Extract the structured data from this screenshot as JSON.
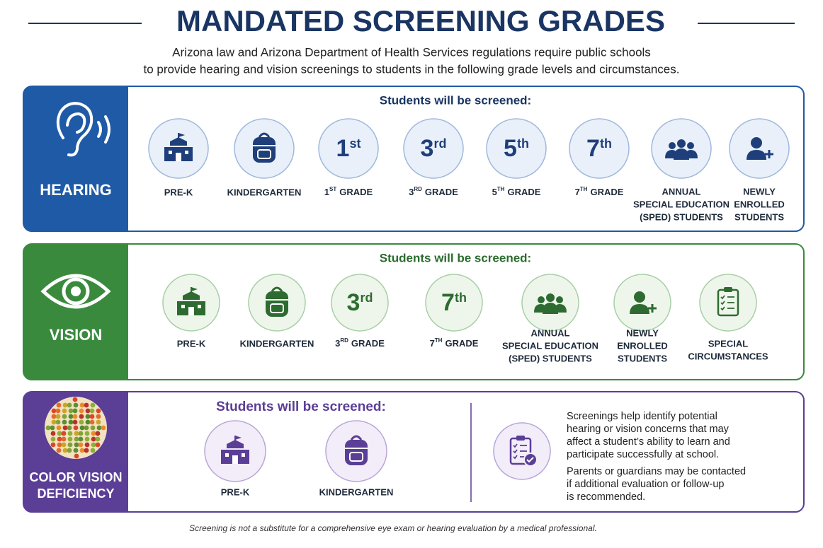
{
  "header": {
    "title": "MANDATED SCREENING GRADES",
    "subtitle_lines": [
      "Arizona law and Arizona Department of Health Services regulations require public schools",
      "to provide hearing and vision screenings to students in the following grade levels and circumstances."
    ]
  },
  "sections": [
    {
      "label_lines": [
        "HEARING"
      ],
      "heading": "Students will be screened:",
      "items": [
        {
          "label_lines": [
            "PRE-K"
          ]
        },
        {
          "label_lines": [
            "KINDERGARTEN"
          ]
        },
        {
          "badge": {
            "num": "1",
            "sup": "st"
          },
          "label": {
            "num": "1",
            "sup": "ST",
            "rest": "GRADE"
          }
        },
        {
          "badge": {
            "num": "3",
            "sup": "rd"
          },
          "label": {
            "num": "3",
            "sup": "RD",
            "rest": "GRADE"
          }
        },
        {
          "badge": {
            "num": "5",
            "sup": "th"
          },
          "label": {
            "num": "5",
            "sup": "TH",
            "rest": "GRADE"
          }
        },
        {
          "badge": {
            "num": "7",
            "sup": "th"
          },
          "label": {
            "num": "7",
            "sup": "TH",
            "rest": "GRADE"
          }
        },
        {
          "label_lines": [
            "ANNUAL",
            "SPECIAL EDUCATION",
            "(SPED) STUDENTS"
          ]
        },
        {
          "label_lines": [
            "NEWLY",
            "ENROLLED",
            "STUDENTS"
          ]
        }
      ]
    },
    {
      "label_lines": [
        "VISION"
      ],
      "heading": "Students will be screened:",
      "items": [
        {
          "label_lines": [
            "PRE-K"
          ]
        },
        {
          "label_lines": [
            "KINDERGARTEN"
          ]
        },
        {
          "badge": {
            "num": "3",
            "sup": "rd"
          },
          "label": {
            "num": "3",
            "sup": "RD",
            "rest": "GRADE"
          }
        },
        {
          "badge": {
            "num": "7",
            "sup": "th"
          },
          "label": {
            "num": "7",
            "sup": "TH",
            "rest": "GRADE"
          }
        },
        {
          "label_lines": [
            "ANNUAL",
            "SPECIAL EDUCATION",
            "(SPED) STUDENTS"
          ]
        },
        {
          "label_lines": [
            "NEWLY",
            "ENROLLED",
            "STUDENTS"
          ]
        },
        {
          "label_lines": [
            "SPECIAL",
            "CIRCUMSTANCES"
          ]
        }
      ]
    },
    {
      "label_lines": [
        "COLOR VISION",
        "DEFICIENCY"
      ],
      "heading": "Students will be screened:",
      "items": [
        {
          "label_lines": [
            "PRE-K"
          ]
        },
        {
          "label_lines": [
            "KINDERGARTEN"
          ]
        }
      ]
    }
  ],
  "note": {
    "paragraphs": [
      [
        "Screenings help identify potential",
        "hearing or vision concerns that may",
        "affect a student’s ability to learn and",
        "participate successfully at school."
      ],
      [
        "Parents or guardians may be contacted",
        "if additional evaluation or follow-up",
        "is recommended."
      ]
    ]
  },
  "footer": "Screening is not a substitute for a comprehensive eye exam or hearing evaluation by a medical professional."
}
